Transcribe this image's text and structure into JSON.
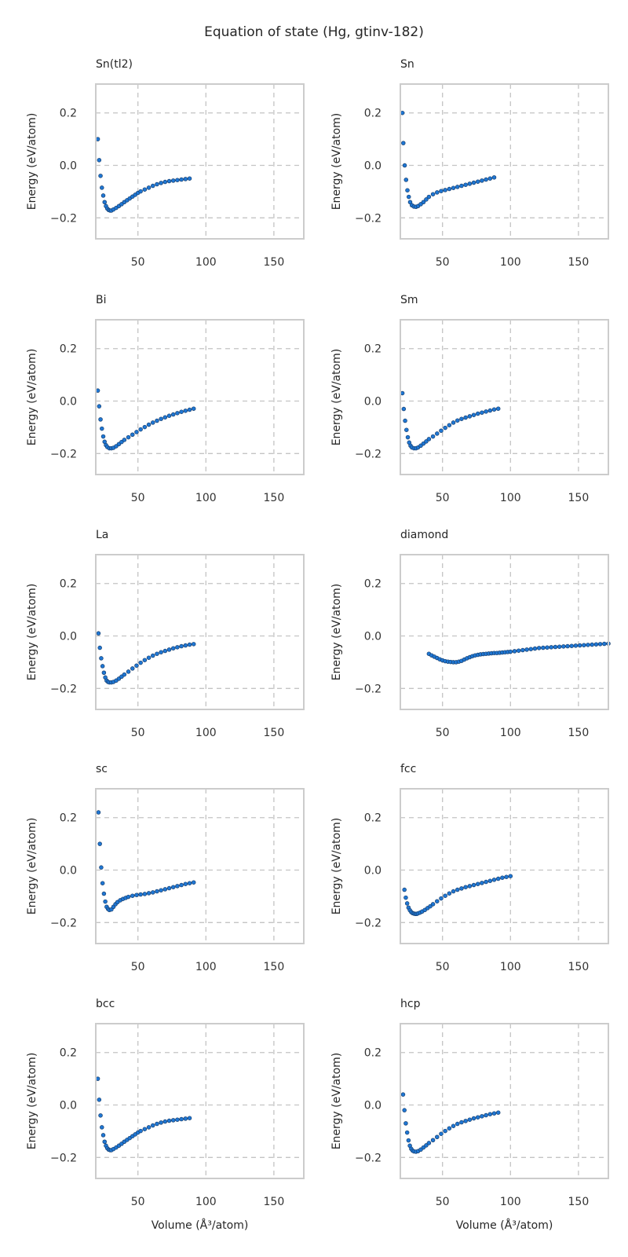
{
  "chart_data": {
    "type": "scatter",
    "title": "Equation of state (Hg, gtinv-182)",
    "xlabel": "Volume (Å³/atom)",
    "ylabel": "Energy (eV/atom)",
    "xlim": [
      19,
      172
    ],
    "ylim": [
      -0.28,
      0.31
    ],
    "xticks": [
      50,
      100,
      150
    ],
    "yticks": [
      0.2,
      0.0,
      -0.2
    ],
    "ytick_labels": [
      "0.2",
      "0.0",
      "−0.2"
    ],
    "grid": true,
    "marker_color": "#1f77d4",
    "panels": [
      {
        "name": "Sn(tl2)",
        "x": [
          20.5,
          21.5,
          22.5,
          23.5,
          24.5,
          25.5,
          26.5,
          27.5,
          28.5,
          29.5,
          30.5,
          32,
          34,
          36,
          38,
          40,
          42,
          44,
          46,
          48,
          50,
          52,
          55,
          58,
          61,
          64,
          67,
          70,
          73,
          76,
          79,
          82,
          85,
          88
        ],
        "y": [
          0.1,
          0.02,
          -0.04,
          -0.085,
          -0.115,
          -0.14,
          -0.155,
          -0.165,
          -0.17,
          -0.172,
          -0.172,
          -0.168,
          -0.162,
          -0.155,
          -0.148,
          -0.14,
          -0.133,
          -0.126,
          -0.119,
          -0.112,
          -0.105,
          -0.099,
          -0.092,
          -0.085,
          -0.078,
          -0.072,
          -0.067,
          -0.063,
          -0.06,
          -0.058,
          -0.056,
          -0.054,
          -0.052,
          -0.05
        ]
      },
      {
        "name": "Sn",
        "x": [
          20.5,
          21.2,
          22.2,
          23.2,
          24.2,
          25.2,
          26.2,
          27.5,
          29,
          30.5,
          32,
          34,
          36,
          38,
          40,
          43,
          46,
          49,
          52,
          55,
          58,
          61,
          64,
          67,
          70,
          73,
          76,
          79,
          82,
          85,
          88
        ],
        "y": [
          0.2,
          0.085,
          0.0,
          -0.055,
          -0.095,
          -0.12,
          -0.14,
          -0.152,
          -0.157,
          -0.158,
          -0.155,
          -0.148,
          -0.14,
          -0.13,
          -0.12,
          -0.11,
          -0.103,
          -0.098,
          -0.094,
          -0.09,
          -0.086,
          -0.082,
          -0.078,
          -0.074,
          -0.07,
          -0.066,
          -0.062,
          -0.058,
          -0.054,
          -0.05,
          -0.046
        ]
      },
      {
        "name": "Bi",
        "x": [
          20.5,
          21.5,
          22.5,
          23.5,
          24.5,
          25.5,
          26.5,
          27.5,
          29,
          30.5,
          32,
          34,
          36,
          38,
          40,
          43,
          46,
          49,
          52,
          55,
          58,
          61,
          64,
          67,
          70,
          73,
          76,
          79,
          82,
          85,
          88,
          91
        ],
        "y": [
          0.04,
          -0.02,
          -0.07,
          -0.105,
          -0.135,
          -0.155,
          -0.168,
          -0.175,
          -0.18,
          -0.18,
          -0.178,
          -0.172,
          -0.164,
          -0.156,
          -0.148,
          -0.138,
          -0.128,
          -0.118,
          -0.108,
          -0.099,
          -0.09,
          -0.082,
          -0.075,
          -0.068,
          -0.062,
          -0.056,
          -0.051,
          -0.046,
          -0.041,
          -0.037,
          -0.033,
          -0.029
        ]
      },
      {
        "name": "Sm",
        "x": [
          20.5,
          21.5,
          22.5,
          23.5,
          24.5,
          25.5,
          26.5,
          27.5,
          29,
          30.5,
          32,
          34,
          36,
          38,
          40,
          43,
          46,
          49,
          52,
          55,
          58,
          61,
          64,
          67,
          70,
          73,
          76,
          79,
          82,
          85,
          88,
          91
        ],
        "y": [
          0.03,
          -0.03,
          -0.075,
          -0.11,
          -0.138,
          -0.158,
          -0.17,
          -0.177,
          -0.18,
          -0.18,
          -0.177,
          -0.17,
          -0.162,
          -0.154,
          -0.145,
          -0.135,
          -0.124,
          -0.113,
          -0.102,
          -0.092,
          -0.082,
          -0.074,
          -0.068,
          -0.063,
          -0.058,
          -0.053,
          -0.048,
          -0.044,
          -0.04,
          -0.036,
          -0.032,
          -0.029
        ]
      },
      {
        "name": "La",
        "x": [
          21,
          22,
          23,
          24,
          25,
          26,
          27,
          28,
          29,
          30.5,
          32,
          34,
          36,
          38,
          40,
          43,
          46,
          49,
          52,
          55,
          58,
          61,
          64,
          67,
          70,
          73,
          76,
          79,
          82,
          85,
          88,
          91
        ],
        "y": [
          0.01,
          -0.045,
          -0.085,
          -0.115,
          -0.14,
          -0.158,
          -0.17,
          -0.175,
          -0.177,
          -0.177,
          -0.175,
          -0.17,
          -0.163,
          -0.155,
          -0.147,
          -0.136,
          -0.124,
          -0.113,
          -0.102,
          -0.092,
          -0.083,
          -0.075,
          -0.068,
          -0.062,
          -0.057,
          -0.052,
          -0.047,
          -0.043,
          -0.039,
          -0.036,
          -0.033,
          -0.031
        ]
      },
      {
        "name": "diamond",
        "x": [
          40,
          42,
          44,
          46,
          48,
          50,
          52,
          54,
          56,
          58,
          60,
          62,
          64,
          66,
          68,
          70,
          72,
          74,
          76,
          78,
          80,
          82,
          84,
          86,
          88,
          90,
          92,
          94,
          96,
          98,
          100,
          103,
          106,
          109,
          112,
          115,
          118,
          121,
          124,
          127,
          130,
          133,
          136,
          139,
          142,
          145,
          148,
          151,
          154,
          157,
          160,
          163,
          166,
          169,
          172
        ],
        "y": [
          -0.068,
          -0.074,
          -0.079,
          -0.084,
          -0.089,
          -0.093,
          -0.096,
          -0.098,
          -0.099,
          -0.1,
          -0.1,
          -0.098,
          -0.095,
          -0.09,
          -0.085,
          -0.081,
          -0.077,
          -0.074,
          -0.072,
          -0.07,
          -0.069,
          -0.068,
          -0.067,
          -0.066,
          -0.065,
          -0.065,
          -0.064,
          -0.063,
          -0.062,
          -0.061,
          -0.06,
          -0.058,
          -0.056,
          -0.054,
          -0.052,
          -0.05,
          -0.048,
          -0.046,
          -0.045,
          -0.044,
          -0.043,
          -0.042,
          -0.041,
          -0.04,
          -0.039,
          -0.038,
          -0.037,
          -0.036,
          -0.035,
          -0.034,
          -0.033,
          -0.032,
          -0.031,
          -0.03,
          -0.029
        ]
      },
      {
        "name": "sc",
        "x": [
          21,
          22,
          23,
          24,
          25,
          26,
          27,
          28,
          29,
          30.5,
          32,
          33.5,
          35,
          37,
          39,
          41,
          43,
          46,
          49,
          52,
          55,
          58,
          61,
          64,
          67,
          70,
          73,
          76,
          79,
          82,
          85,
          88,
          91
        ],
        "y": [
          0.22,
          0.1,
          0.01,
          -0.05,
          -0.09,
          -0.12,
          -0.14,
          -0.148,
          -0.152,
          -0.15,
          -0.14,
          -0.13,
          -0.122,
          -0.115,
          -0.11,
          -0.106,
          -0.102,
          -0.098,
          -0.095,
          -0.093,
          -0.091,
          -0.088,
          -0.085,
          -0.081,
          -0.077,
          -0.073,
          -0.069,
          -0.065,
          -0.061,
          -0.057,
          -0.053,
          -0.05,
          -0.047
        ]
      },
      {
        "name": "fcc",
        "x": [
          22,
          23,
          24,
          25,
          26,
          27,
          28,
          29,
          30,
          31,
          32,
          33.5,
          35,
          37,
          39,
          41,
          43,
          46,
          49,
          52,
          55,
          58,
          61,
          64,
          67,
          70,
          73,
          76,
          79,
          82,
          85,
          88,
          91,
          94,
          97,
          100
        ],
        "y": [
          -0.075,
          -0.105,
          -0.127,
          -0.143,
          -0.153,
          -0.16,
          -0.164,
          -0.166,
          -0.167,
          -0.167,
          -0.165,
          -0.162,
          -0.158,
          -0.152,
          -0.145,
          -0.138,
          -0.13,
          -0.119,
          -0.108,
          -0.098,
          -0.089,
          -0.081,
          -0.075,
          -0.07,
          -0.065,
          -0.061,
          -0.057,
          -0.053,
          -0.049,
          -0.045,
          -0.041,
          -0.037,
          -0.033,
          -0.029,
          -0.026,
          -0.023
        ]
      },
      {
        "name": "bcc",
        "x": [
          20.5,
          21.5,
          22.5,
          23.5,
          24.5,
          25.5,
          26.5,
          27.5,
          28.5,
          29.5,
          30.5,
          32,
          34,
          36,
          38,
          40,
          42,
          44,
          46,
          48,
          50,
          52,
          55,
          58,
          61,
          64,
          67,
          70,
          73,
          76,
          79,
          82,
          85,
          88
        ],
        "y": [
          0.1,
          0.02,
          -0.04,
          -0.085,
          -0.115,
          -0.14,
          -0.155,
          -0.165,
          -0.17,
          -0.172,
          -0.172,
          -0.168,
          -0.162,
          -0.155,
          -0.148,
          -0.14,
          -0.133,
          -0.126,
          -0.119,
          -0.112,
          -0.105,
          -0.099,
          -0.092,
          -0.085,
          -0.078,
          -0.072,
          -0.067,
          -0.063,
          -0.06,
          -0.058,
          -0.056,
          -0.054,
          -0.052,
          -0.05
        ]
      },
      {
        "name": "hcp",
        "x": [
          21,
          22,
          23,
          24,
          25,
          26,
          27,
          28,
          29,
          30.5,
          32,
          34,
          36,
          38,
          40,
          43,
          46,
          49,
          52,
          55,
          58,
          61,
          64,
          67,
          70,
          73,
          76,
          79,
          82,
          85,
          88,
          91
        ],
        "y": [
          0.04,
          -0.02,
          -0.07,
          -0.105,
          -0.135,
          -0.155,
          -0.167,
          -0.174,
          -0.177,
          -0.178,
          -0.176,
          -0.17,
          -0.162,
          -0.154,
          -0.145,
          -0.134,
          -0.122,
          -0.11,
          -0.099,
          -0.089,
          -0.08,
          -0.072,
          -0.066,
          -0.061,
          -0.056,
          -0.051,
          -0.047,
          -0.043,
          -0.039,
          -0.035,
          -0.032,
          -0.029
        ]
      }
    ]
  }
}
